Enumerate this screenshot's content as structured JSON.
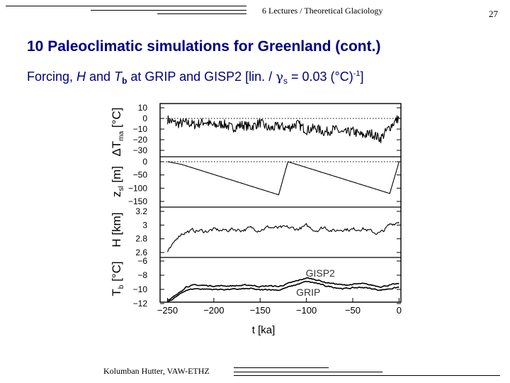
{
  "header": {
    "text": "6 Lectures / Theoretical Glaciology",
    "page_number": "27"
  },
  "slide": {
    "title": "10  Paleoclimatic simulations for Greenland (cont.)",
    "subtitle_part1": "Forcing, ",
    "subtitle_H": "H",
    "subtitle_part2": " and ",
    "subtitle_T": "T",
    "subtitle_b": "b",
    "subtitle_part3": " at GRIP and GISP2  [lin. / ",
    "subtitle_gamma": "γ",
    "subtitle_s": "s",
    "subtitle_part4": " = 0.03 (°C)",
    "subtitle_exp": "-1",
    "subtitle_part5": "]"
  },
  "footer": {
    "author": "Kolumban Hutter, VAW-ETHZ"
  },
  "colors": {
    "title": "#000080",
    "ink": "#000000"
  },
  "chart_data": [
    {
      "type": "line",
      "panel": "temperature deviation",
      "ylabel": "ΔT_ma [°C]",
      "ylim": [
        -30,
        10
      ],
      "yticks": [
        "10",
        "0",
        "−10",
        "−20",
        "−30"
      ],
      "reference_line": 0,
      "x": [
        -250,
        -240,
        -230,
        -220,
        -210,
        -200,
        -190,
        -180,
        -170,
        -160,
        -150,
        -140,
        -130,
        -120,
        -110,
        -100,
        -90,
        -80,
        -70,
        -60,
        -50,
        -40,
        -30,
        -20,
        -10,
        0
      ],
      "values": [
        -1,
        -5,
        -4,
        -6,
        -3,
        -7,
        -5,
        -9,
        -6,
        -8,
        -4,
        -10,
        -7,
        -9,
        -5,
        -11,
        -9,
        -13,
        -10,
        -14,
        -12,
        -16,
        -14,
        -19,
        -8,
        1
      ]
    },
    {
      "type": "line",
      "panel": "sea level",
      "ylabel": "z_sl [m]",
      "ylim": [
        -150,
        0
      ],
      "yticks": [
        "0",
        "−50",
        "−100",
        "−150"
      ],
      "reference_line": 0,
      "x": [
        -250,
        -235,
        -130,
        -120,
        -10,
        0
      ],
      "values": [
        0,
        -10,
        -125,
        0,
        -120,
        0
      ]
    },
    {
      "type": "line",
      "panel": "ice thickness",
      "ylabel": "H [km]",
      "ylim": [
        2.6,
        3.2
      ],
      "yticks": [
        "3.2",
        "3",
        "2.8",
        "2.6"
      ],
      "x": [
        -250,
        -245,
        -240,
        -235,
        -230,
        -220,
        -210,
        -200,
        -190,
        -180,
        -170,
        -160,
        -150,
        -140,
        -130,
        -120,
        -110,
        -100,
        -90,
        -80,
        -70,
        -60,
        -50,
        -40,
        -30,
        -20,
        -10,
        0
      ],
      "values": [
        2.6,
        2.68,
        2.82,
        2.88,
        2.9,
        2.92,
        2.91,
        2.93,
        2.92,
        2.94,
        2.93,
        2.95,
        2.94,
        2.97,
        2.95,
        2.96,
        2.94,
        2.98,
        2.93,
        2.97,
        2.91,
        2.95,
        2.93,
        2.96,
        2.9,
        2.88,
        3.0,
        3.06
      ]
    },
    {
      "type": "line",
      "panel": "basal temperature",
      "ylabel": "T_b [°C]",
      "ylim": [
        -12,
        -6
      ],
      "yticks": [
        "−6",
        "−8",
        "−10",
        "−12"
      ],
      "x": [
        -250,
        -240,
        -230,
        -220,
        -200,
        -180,
        -160,
        -150,
        -140,
        -130,
        -120,
        -110,
        -100,
        -90,
        -80,
        -70,
        -60,
        -50,
        -40,
        -30,
        -20,
        -10,
        0
      ],
      "series": [
        {
          "name": "GISP2",
          "values": [
            -11.5,
            -10.8,
            -9.6,
            -9.4,
            -9.5,
            -9.5,
            -9.4,
            -9.6,
            -9.5,
            -9.6,
            -9.2,
            -8.8,
            -8.4,
            -8.6,
            -9.0,
            -9.2,
            -9.4,
            -9.3,
            -9.2,
            -9.4,
            -9.6,
            -9.4,
            -9.2
          ]
        },
        {
          "name": "GRIP",
          "values": [
            -11.8,
            -11.0,
            -10.1,
            -9.9,
            -10.0,
            -10.0,
            -9.9,
            -10.1,
            -10.0,
            -10.1,
            -9.7,
            -9.3,
            -8.9,
            -9.1,
            -9.5,
            -9.7,
            -9.9,
            -9.8,
            -9.7,
            -9.9,
            -10.1,
            -9.9,
            -9.7
          ]
        }
      ]
    }
  ],
  "x_axis": {
    "label": "t [ka]",
    "ticks": [
      "−250",
      "−200",
      "−150",
      "−100",
      "−50",
      "0"
    ],
    "xlim": [
      -258,
      2
    ]
  }
}
